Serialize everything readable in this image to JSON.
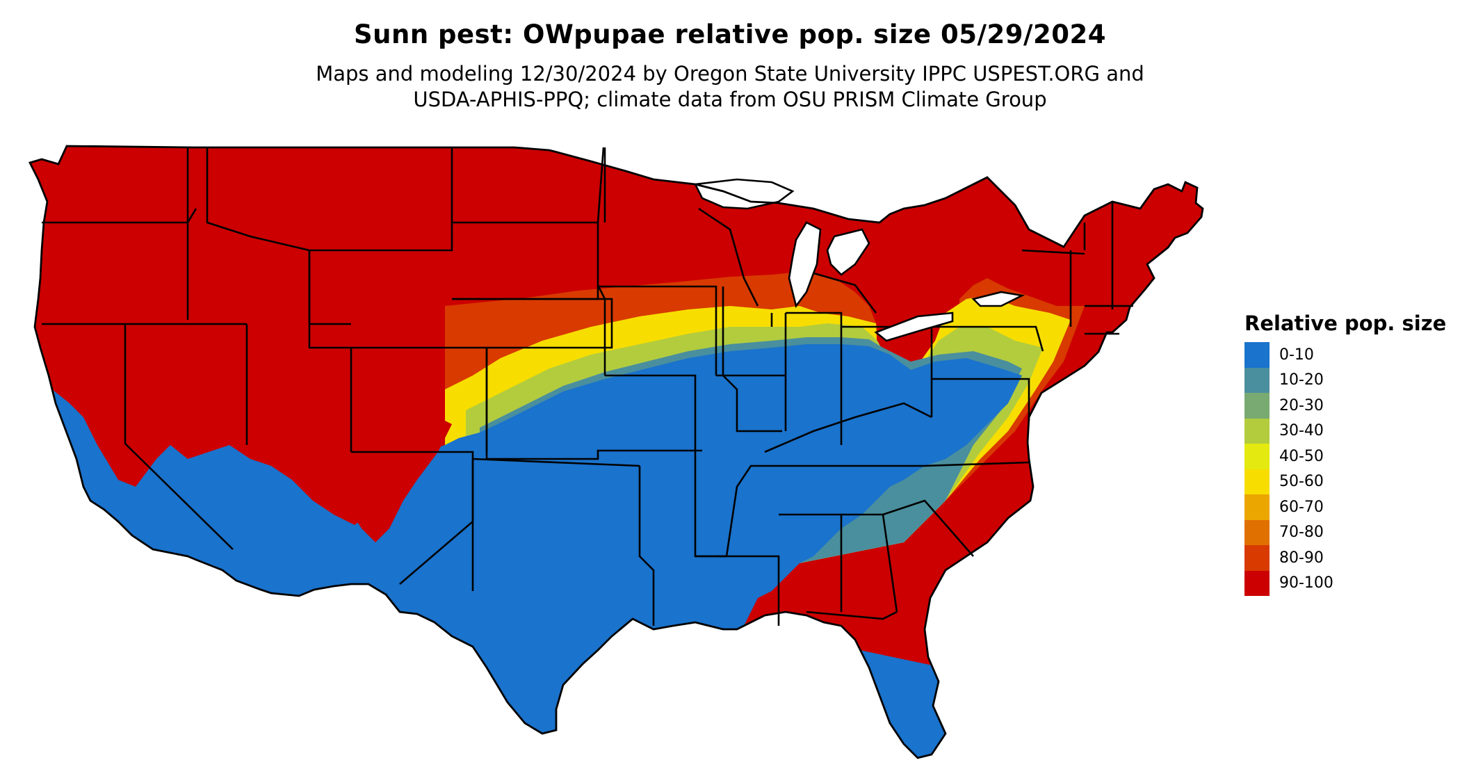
{
  "title": "Sunn pest: OWpupae relative pop. size 05/29/2024",
  "subtitle_lines": [
    "Maps and modeling 12/30/2024 by Oregon State University IPPC USPEST.ORG and",
    "USDA-APHIS-PPQ; climate data from OSU PRISM Climate Group"
  ],
  "legend": {
    "title": "Relative pop. size",
    "items": [
      {
        "label": "0-10",
        "color": "#1a73cc"
      },
      {
        "label": "10-20",
        "color": "#4a8f9e"
      },
      {
        "label": "20-30",
        "color": "#78aa72"
      },
      {
        "label": "30-40",
        "color": "#b2cc3e"
      },
      {
        "label": "40-50",
        "color": "#e4ea10"
      },
      {
        "label": "50-60",
        "color": "#f7de00"
      },
      {
        "label": "60-70",
        "color": "#eca600"
      },
      {
        "label": "70-80",
        "color": "#e07000"
      },
      {
        "label": "80-90",
        "color": "#d83a00"
      },
      {
        "label": "90-100",
        "color": "#cc0000"
      }
    ]
  }
}
